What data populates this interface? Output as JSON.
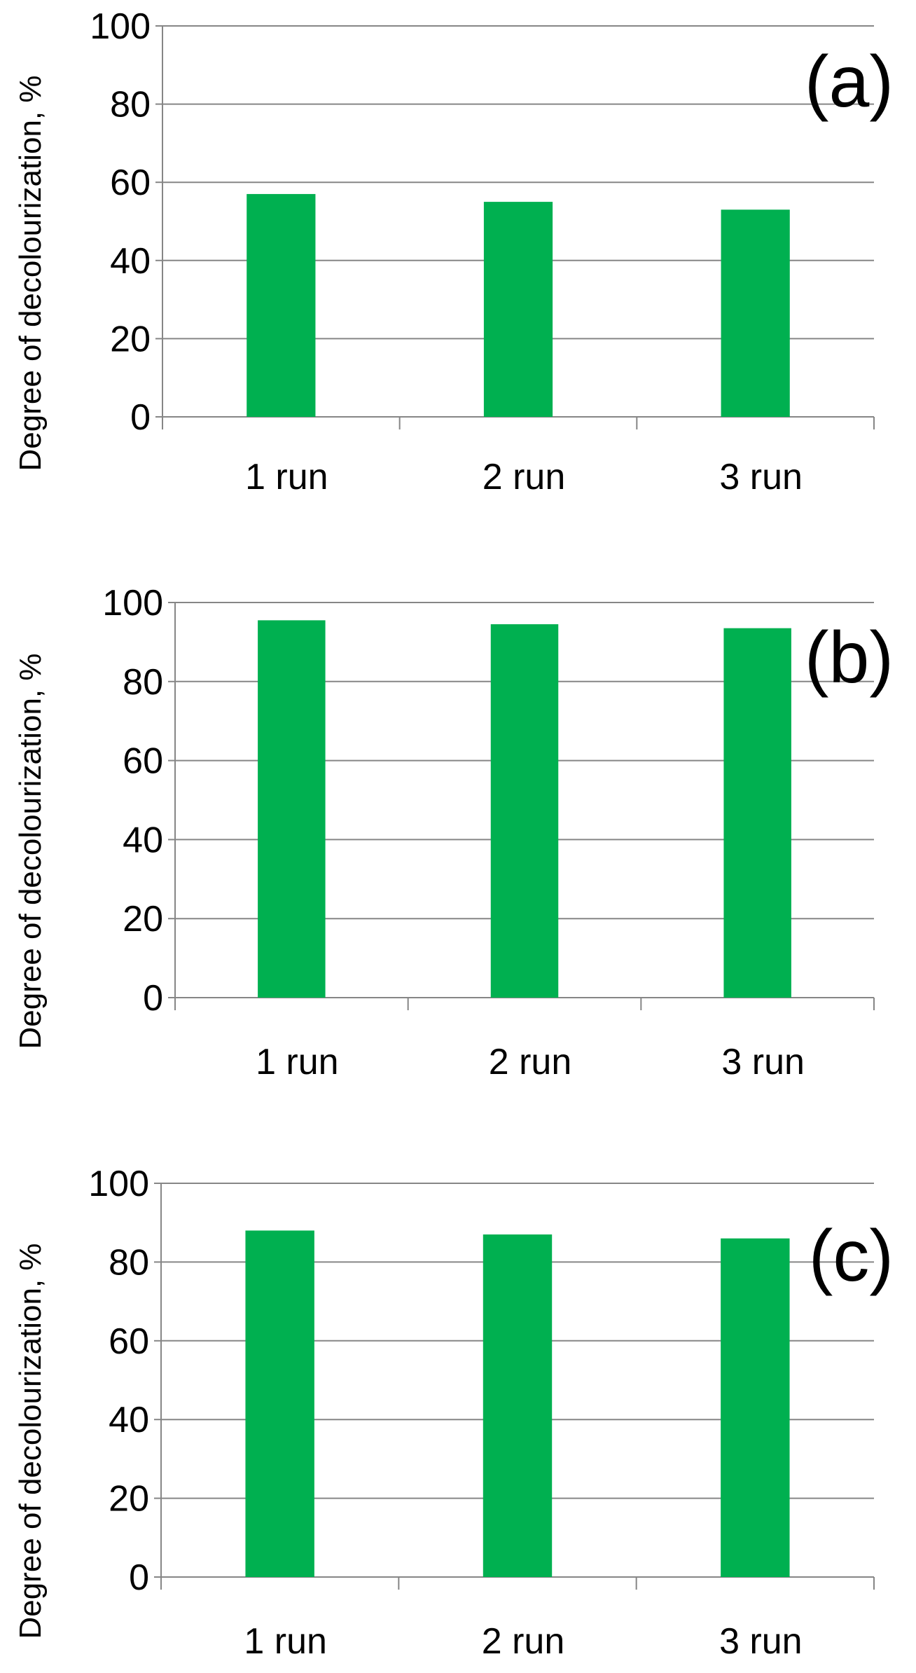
{
  "chart_data": [
    {
      "type": "bar",
      "panel_label": "(a)",
      "ylabel": "Degree of decolourization, %",
      "xlabel": "",
      "categories": [
        "1 run",
        "2 run",
        "3 run"
      ],
      "values": [
        57,
        55,
        53
      ],
      "ylim": [
        0,
        100
      ],
      "yticks": [
        "0",
        "20",
        "40",
        "60",
        "80",
        "100"
      ],
      "grid": "horizontal",
      "bar_color": "#00b050"
    },
    {
      "type": "bar",
      "panel_label": "(b)",
      "ylabel": "Degree of decolourization, %",
      "xlabel": "",
      "categories": [
        "1 run",
        "2 run",
        "3 run"
      ],
      "values": [
        95.5,
        94.5,
        93.5
      ],
      "ylim": [
        0,
        100
      ],
      "yticks": [
        "0",
        "20",
        "40",
        "60",
        "80",
        "100"
      ],
      "grid": "horizontal",
      "bar_color": "#00b050"
    },
    {
      "type": "bar",
      "panel_label": "(c)",
      "ylabel": "Degree of decolourization, %",
      "xlabel": "",
      "categories": [
        "1 run",
        "2 run",
        "3 run"
      ],
      "values": [
        88,
        87,
        86
      ],
      "ylim": [
        0,
        100
      ],
      "yticks": [
        "0",
        "20",
        "40",
        "60",
        "80",
        "100"
      ],
      "grid": "horizontal",
      "bar_color": "#00b050"
    }
  ]
}
